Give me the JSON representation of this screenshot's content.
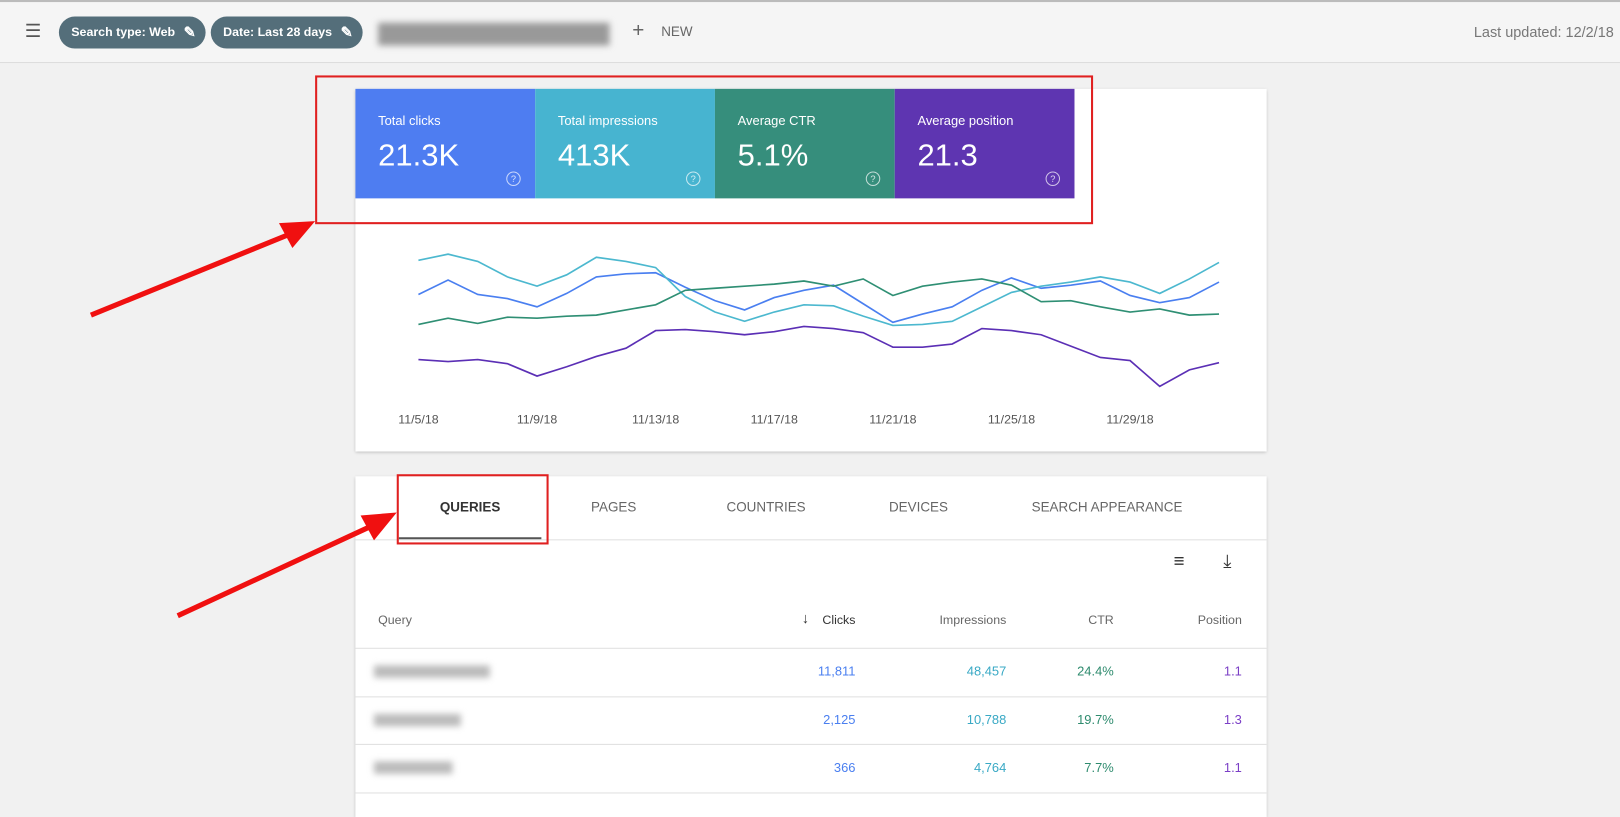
{
  "toolbar": {
    "chips": [
      "Search type: Web",
      "Date: Last 28 days"
    ],
    "new_label": "NEW",
    "last_updated": "Last updated: 12/2/18"
  },
  "metrics": [
    {
      "label": "Total clicks",
      "value": "21.3K",
      "color": "#4e7df1"
    },
    {
      "label": "Total impressions",
      "value": "413K",
      "color": "#47b4d0"
    },
    {
      "label": "Average CTR",
      "value": "5.1%",
      "color": "#368e7c"
    },
    {
      "label": "Average position",
      "value": "21.3",
      "color": "#5e35b1"
    }
  ],
  "chart_data": {
    "type": "line",
    "categories": [
      "11/5/18",
      null,
      null,
      null,
      "11/9/18",
      null,
      null,
      null,
      "11/13/18",
      null,
      null,
      null,
      "11/17/18",
      null,
      null,
      null,
      "11/21/18",
      null,
      null,
      null,
      "11/25/18",
      null,
      null,
      null,
      "11/29/18",
      null,
      null,
      null
    ],
    "ylim": [
      0,
      200
    ],
    "series": [
      {
        "color": "#4a7ff0",
        "values": [
          115,
          129,
          115,
          111,
          103,
          116,
          132,
          135,
          136,
          122,
          109,
          100,
          112,
          119,
          124,
          106,
          88,
          96,
          103,
          119,
          131,
          121,
          124,
          128,
          114,
          107,
          112,
          127
        ]
      },
      {
        "color": "#4cb8cf",
        "values": [
          148,
          154,
          147,
          132,
          123,
          134,
          151,
          147,
          141,
          113,
          98,
          89,
          98,
          105,
          104,
          94,
          85,
          86,
          89,
          103,
          117,
          123,
          127,
          132,
          127,
          116,
          130,
          146
        ]
      },
      {
        "color": "#2f8f74",
        "values": [
          86,
          92,
          87,
          93,
          92,
          94,
          95,
          100,
          105,
          119,
          121,
          123,
          125,
          128,
          123,
          130,
          114,
          123,
          127,
          130,
          124,
          108,
          109,
          103,
          98,
          101,
          95,
          96
        ]
      },
      {
        "color": "#5b2fb5",
        "values": [
          52,
          50,
          52,
          48,
          36,
          45,
          55,
          63,
          80,
          81,
          79,
          76,
          79,
          84,
          82,
          78,
          64,
          64,
          67,
          82,
          80,
          76,
          65,
          54,
          51,
          26,
          42,
          49
        ]
      }
    ]
  },
  "tabs": [
    "QUERIES",
    "PAGES",
    "COUNTRIES",
    "DEVICES",
    "SEARCH APPEARANCE"
  ],
  "table": {
    "columns": [
      "Query",
      "Clicks",
      "Impressions",
      "CTR",
      "Position"
    ],
    "rows": [
      [
        "11,811",
        "48,457",
        "24.4%",
        "1.1"
      ],
      [
        "2,125",
        "10,788",
        "19.7%",
        "1.3"
      ],
      [
        "366",
        "4,764",
        "7.7%",
        "1.1"
      ]
    ]
  }
}
